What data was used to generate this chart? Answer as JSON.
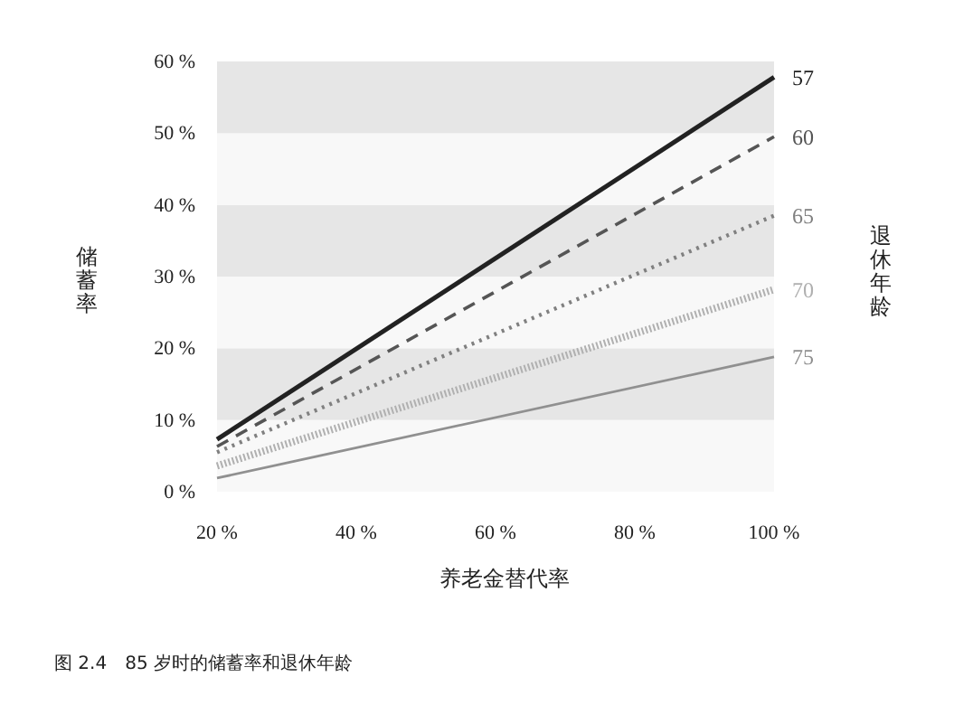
{
  "chart_data": {
    "type": "line",
    "xlabel": "养老金替代率",
    "ylabel": "储蓄率",
    "y2label": "退休年龄",
    "x": [
      20,
      100
    ],
    "series": [
      {
        "name": "57",
        "color": "#222222",
        "values": [
          7.3,
          57.8
        ],
        "line_style": "solid"
      },
      {
        "name": "60",
        "color": "#555555",
        "values": [
          6.3,
          49.5
        ],
        "line_style": "dashed"
      },
      {
        "name": "65",
        "color": "#808080",
        "values": [
          5.5,
          38.5
        ],
        "line_style": "dotted"
      },
      {
        "name": "70",
        "color": "#b0b0b0",
        "values": [
          3.6,
          28.2
        ],
        "line_style": "dotted"
      },
      {
        "name": "75",
        "color": "#909090",
        "values": [
          1.9,
          18.8
        ],
        "line_style": "solid"
      }
    ],
    "xlim": [
      20,
      100
    ],
    "ylim": [
      0,
      60
    ],
    "xticks": [
      {
        "value": 20,
        "label": "20 %"
      },
      {
        "value": 40,
        "label": "40 %"
      },
      {
        "value": 60,
        "label": "60 %"
      },
      {
        "value": 80,
        "label": "80 %"
      },
      {
        "value": 100,
        "label": "100 %"
      }
    ],
    "yticks": [
      {
        "value": 0,
        "label": "0 %"
      },
      {
        "value": 10,
        "label": "10 %"
      },
      {
        "value": 20,
        "label": "20 %"
      },
      {
        "value": 30,
        "label": "30 %"
      },
      {
        "value": 40,
        "label": "40 %"
      },
      {
        "value": 50,
        "label": "50 %"
      },
      {
        "value": 60,
        "label": "60 %"
      }
    ],
    "bands": [
      {
        "axis": "y",
        "from": 0,
        "to": 10,
        "color": "#f8f8f8"
      },
      {
        "axis": "y",
        "from": 10,
        "to": 20,
        "color": "#e6e6e6"
      },
      {
        "axis": "y",
        "from": 20,
        "to": 30,
        "color": "#f8f8f8"
      },
      {
        "axis": "y",
        "from": 30,
        "to": 40,
        "color": "#e6e6e6"
      },
      {
        "axis": "y",
        "from": 40,
        "to": 50,
        "color": "#f8f8f8"
      },
      {
        "axis": "y",
        "from": 50,
        "to": 60,
        "color": "#e6e6e6"
      }
    ],
    "marker": "none",
    "grid": false,
    "annotations": [
      "图 2.4　85 岁时的储蓄率和退休年龄"
    ]
  }
}
